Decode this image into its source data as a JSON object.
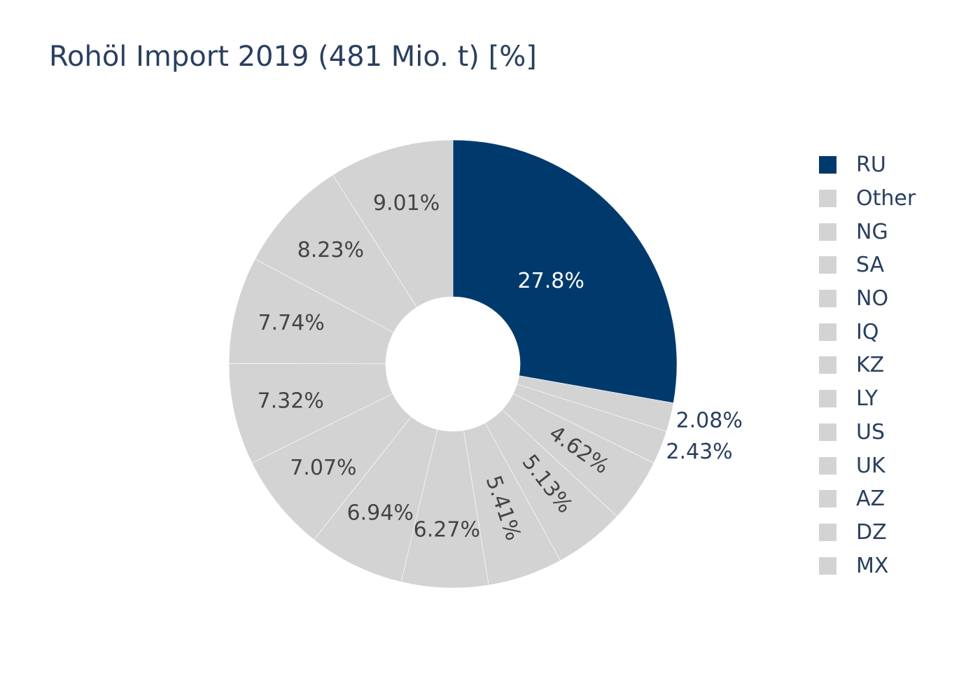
{
  "chart_data": {
    "type": "pie",
    "hole": true,
    "title": "Rohöl Import 2019 (481 Mio. t) [%]",
    "series": [
      {
        "label": "RU",
        "value": 27.8,
        "text": "27.8%",
        "color": "#003a6c"
      },
      {
        "label": "Other",
        "value": 2.08,
        "text": "2.08%",
        "color": "#d3d3d3"
      },
      {
        "label": "NG",
        "value": 2.43,
        "text": "2.43%",
        "color": "#d3d3d3"
      },
      {
        "label": "SA",
        "value": 4.62,
        "text": "4.62%",
        "color": "#d3d3d3"
      },
      {
        "label": "NO",
        "value": 5.13,
        "text": "5.13%",
        "color": "#d3d3d3"
      },
      {
        "label": "IQ",
        "value": 5.41,
        "text": "5.41%",
        "color": "#d3d3d3"
      },
      {
        "label": "KZ",
        "value": 6.27,
        "text": "6.27%",
        "color": "#d3d3d3"
      },
      {
        "label": "LY",
        "value": 6.94,
        "text": "6.94%",
        "color": "#d3d3d3"
      },
      {
        "label": "US",
        "value": 7.07,
        "text": "7.07%",
        "color": "#d3d3d3"
      },
      {
        "label": "UK",
        "value": 7.32,
        "text": "7.32%",
        "color": "#d3d3d3"
      },
      {
        "label": "AZ",
        "value": 7.74,
        "text": "7.74%",
        "color": "#d3d3d3"
      },
      {
        "label": "DZ",
        "value": 8.23,
        "text": "8.23%",
        "color": "#d3d3d3"
      },
      {
        "label": "MX",
        "value": 9.01,
        "text": "9.01%",
        "color": "#d3d3d3"
      }
    ],
    "legend_position": "right",
    "colors": {
      "highlight": "#003a6c",
      "other": "#d3d3d3",
      "text_dark": "#444444",
      "text_light": "#ffffff",
      "title": "#2a3f5f"
    }
  }
}
